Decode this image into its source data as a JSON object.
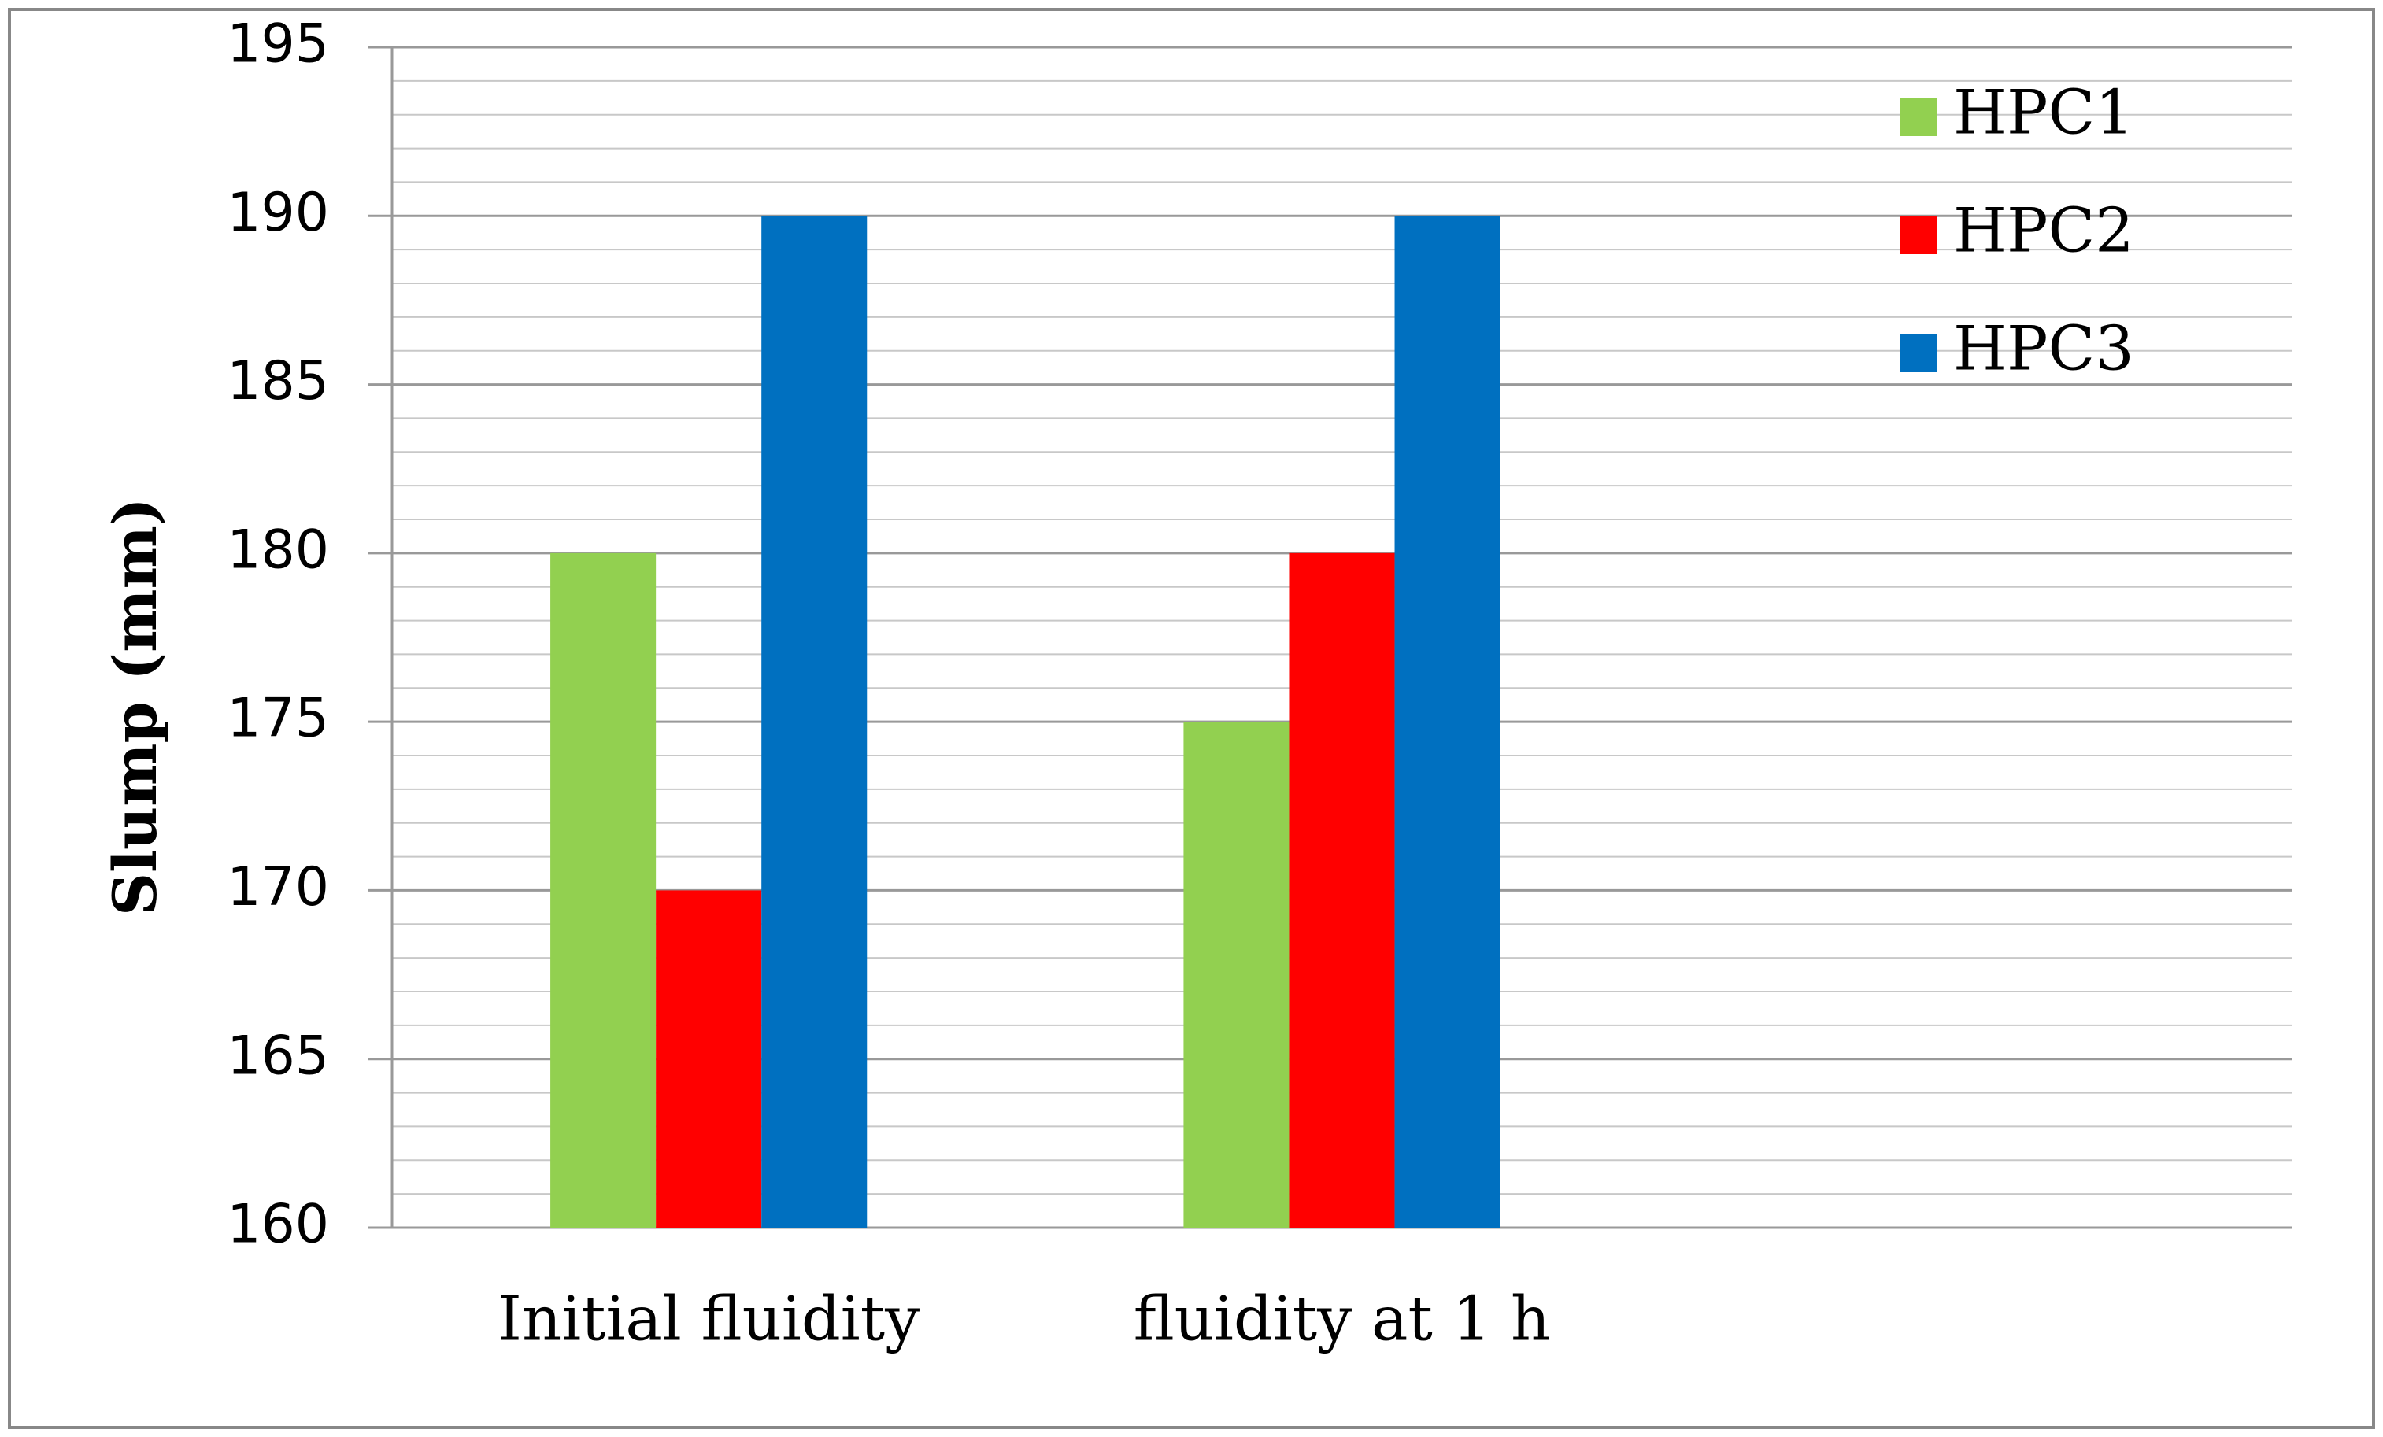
{
  "chart_data": {
    "type": "bar",
    "y_label": "Slump (mm)",
    "categories": [
      "Initial fluidity",
      "fluidity at 1 h",
      null
    ],
    "series": [
      {
        "name": "HPC1",
        "color": "#92d050",
        "values": [
          180,
          175,
          null
        ]
      },
      {
        "name": "HPC2",
        "color": "#ff0000",
        "values": [
          170,
          180,
          null
        ]
      },
      {
        "name": "HPC3",
        "color": "#0070c0",
        "values": [
          190,
          190,
          null
        ]
      }
    ],
    "ylim": [
      160,
      195
    ],
    "yticks": [
      160,
      165,
      170,
      175,
      180,
      185,
      190,
      195
    ],
    "minor_yticks": [
      161,
      162,
      163,
      164,
      166,
      167,
      168,
      169,
      171,
      172,
      173,
      174,
      176,
      177,
      178,
      179,
      181,
      182,
      183,
      184,
      186,
      187,
      188,
      189,
      191,
      192,
      193,
      194
    ],
    "grid": true,
    "legend": "top-right"
  }
}
